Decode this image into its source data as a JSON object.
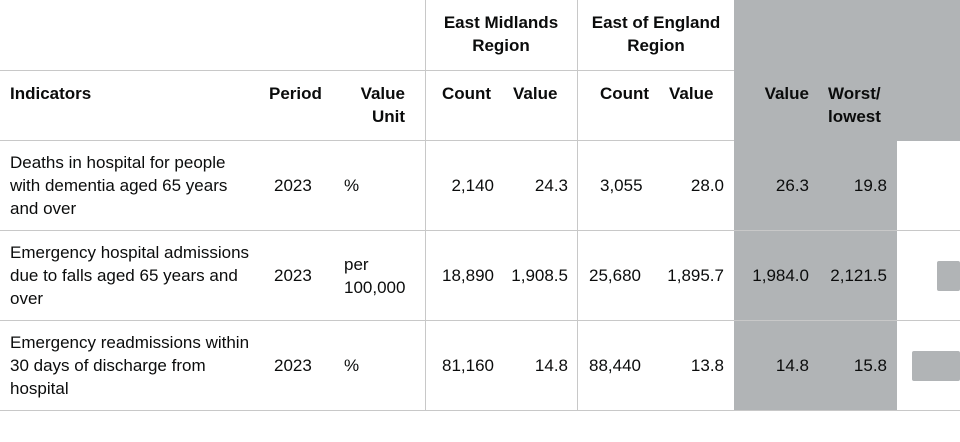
{
  "groups": {
    "east_midlands": "East Midlands Region",
    "east_of_england": "East of England Region"
  },
  "headers": {
    "indicators": "Indicators",
    "period": "Period",
    "value_unit": "Value Unit",
    "em_count": "Count",
    "em_value": "Value",
    "ee_count": "Count",
    "ee_value": "Value",
    "eng_value": "Value",
    "worst_lowest": "Worst/ lowest"
  },
  "rows": [
    {
      "indicator": "Deaths in hospital for people with dementia aged 65 years and over",
      "period": "2023",
      "unit": "%",
      "em_count": "2,140",
      "em_value": "24.3",
      "ee_count": "3,055",
      "ee_value": "28.0",
      "eng_value": "26.3",
      "worst": "19.8"
    },
    {
      "indicator": "Emergency hospital admissions due to falls aged 65 years and over",
      "period": "2023",
      "unit": "per 100,000",
      "em_count": "18,890",
      "em_value": "1,908.5",
      "ee_count": "25,680",
      "ee_value": "1,895.7",
      "eng_value": "1,984.0",
      "worst": "2,121.5"
    },
    {
      "indicator": "Emergency readmissions within 30 days of discharge from hospital",
      "period": "2023",
      "unit": "%",
      "em_count": "81,160",
      "em_value": "14.8",
      "ee_count": "88,440",
      "ee_value": "13.8",
      "eng_value": "14.8",
      "worst": "15.8"
    }
  ],
  "colors": {
    "grey": "#b1b4b6",
    "line": "#c8c8c8",
    "text": "#0b0c0c"
  }
}
